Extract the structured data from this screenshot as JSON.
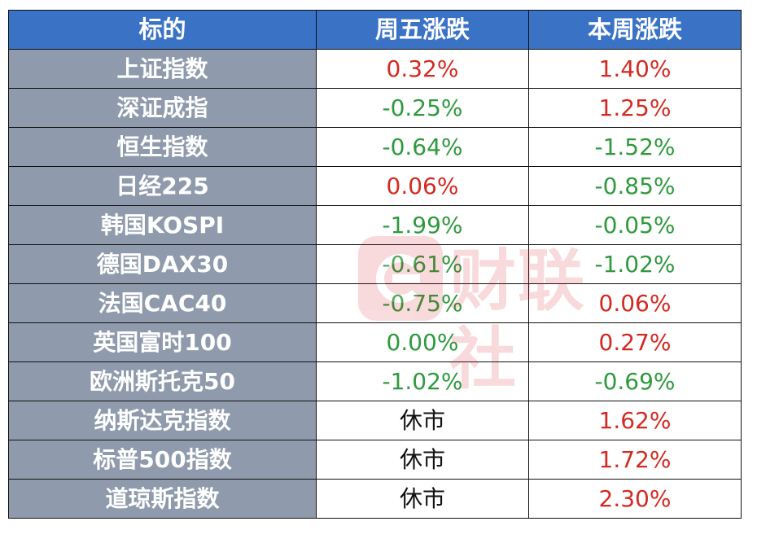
{
  "header": {
    "col1": "标的",
    "col2": "周五涨跌",
    "col3": "本周涨跌"
  },
  "rows": [
    {
      "name": "上证指数",
      "fri": "0.32%",
      "week": "1.40%"
    },
    {
      "name": "深证成指",
      "fri": "-0.25%",
      "week": "1.25%"
    },
    {
      "name": "恒生指数",
      "fri": "-0.64%",
      "week": "-1.52%"
    },
    {
      "name": "日经225",
      "fri": "0.06%",
      "week": "-0.85%"
    },
    {
      "name": "韩国KOSPI",
      "fri": "-1.99%",
      "week": "-0.05%"
    },
    {
      "name": "德国DAX30",
      "fri": "-0.61%",
      "week": "-1.02%"
    },
    {
      "name": "法国CAC40",
      "fri": "-0.75%",
      "week": "0.06%"
    },
    {
      "name": "英国富时100",
      "fri": "0.00%",
      "week": "0.27%"
    },
    {
      "name": "欧洲斯托克50",
      "fri": "-1.02%",
      "week": "-0.69%"
    },
    {
      "name": "纳斯达克指数",
      "fri": "休市",
      "week": "1.62%"
    },
    {
      "name": "标普500指数",
      "fri": "休市",
      "week": "1.72%"
    },
    {
      "name": "道琼斯指数",
      "fri": "休市",
      "week": "2.30%"
    }
  ],
  "watermark": {
    "text": "财联社"
  },
  "colors": {
    "header_bg": "#3a73c6",
    "name_bg": "#8f9bac",
    "up": "#d32a22",
    "down": "#2f9a3d",
    "closed": "#111111"
  }
}
